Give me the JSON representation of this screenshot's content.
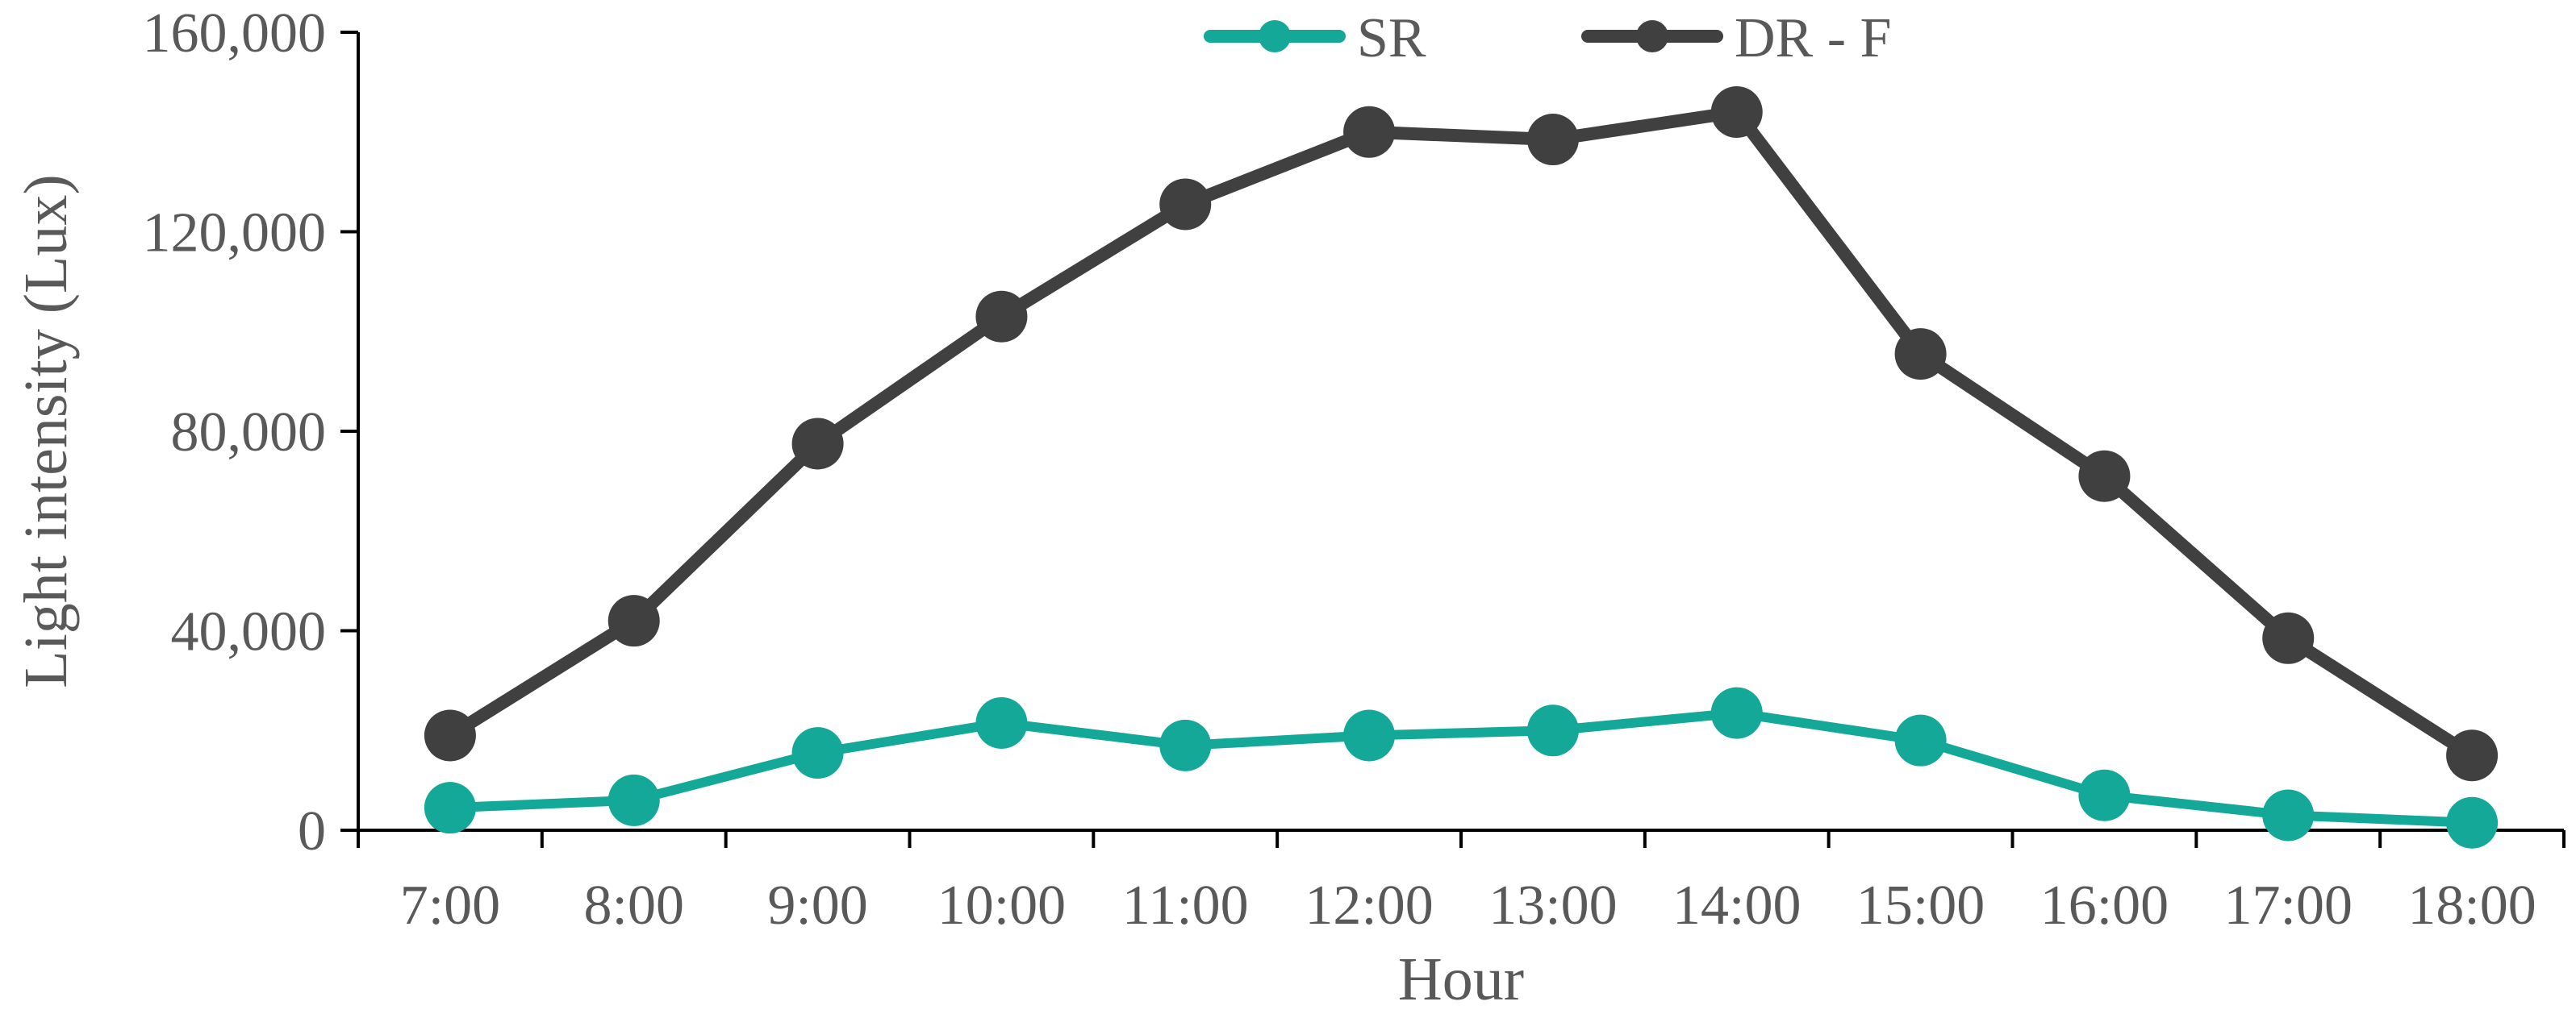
{
  "chart_data": {
    "type": "line",
    "categories": [
      "7:00",
      "8:00",
      "9:00",
      "10:00",
      "11:00",
      "12:00",
      "13:00",
      "14:00",
      "15:00",
      "16:00",
      "17:00",
      "18:00"
    ],
    "series": [
      {
        "name": "SR",
        "color": "#13a897",
        "values": [
          4500,
          6000,
          15500,
          21500,
          17000,
          19000,
          20000,
          23500,
          18000,
          7000,
          3000,
          1500
        ]
      },
      {
        "name": "DR - F",
        "color": "#404040",
        "values": [
          19000,
          42000,
          77500,
          103000,
          125500,
          140000,
          138500,
          144000,
          95500,
          71000,
          38500,
          15000
        ]
      }
    ],
    "xlabel": "Hour",
    "ylabel": "Light intensity (Lux)",
    "ylim": [
      0,
      160000
    ],
    "yticks": [
      "0",
      "40,000",
      "80,000",
      "120,000",
      "160,000"
    ],
    "ytick_values": [
      0,
      40000,
      80000,
      120000,
      160000
    ],
    "grid": false,
    "legend_position": "top"
  }
}
